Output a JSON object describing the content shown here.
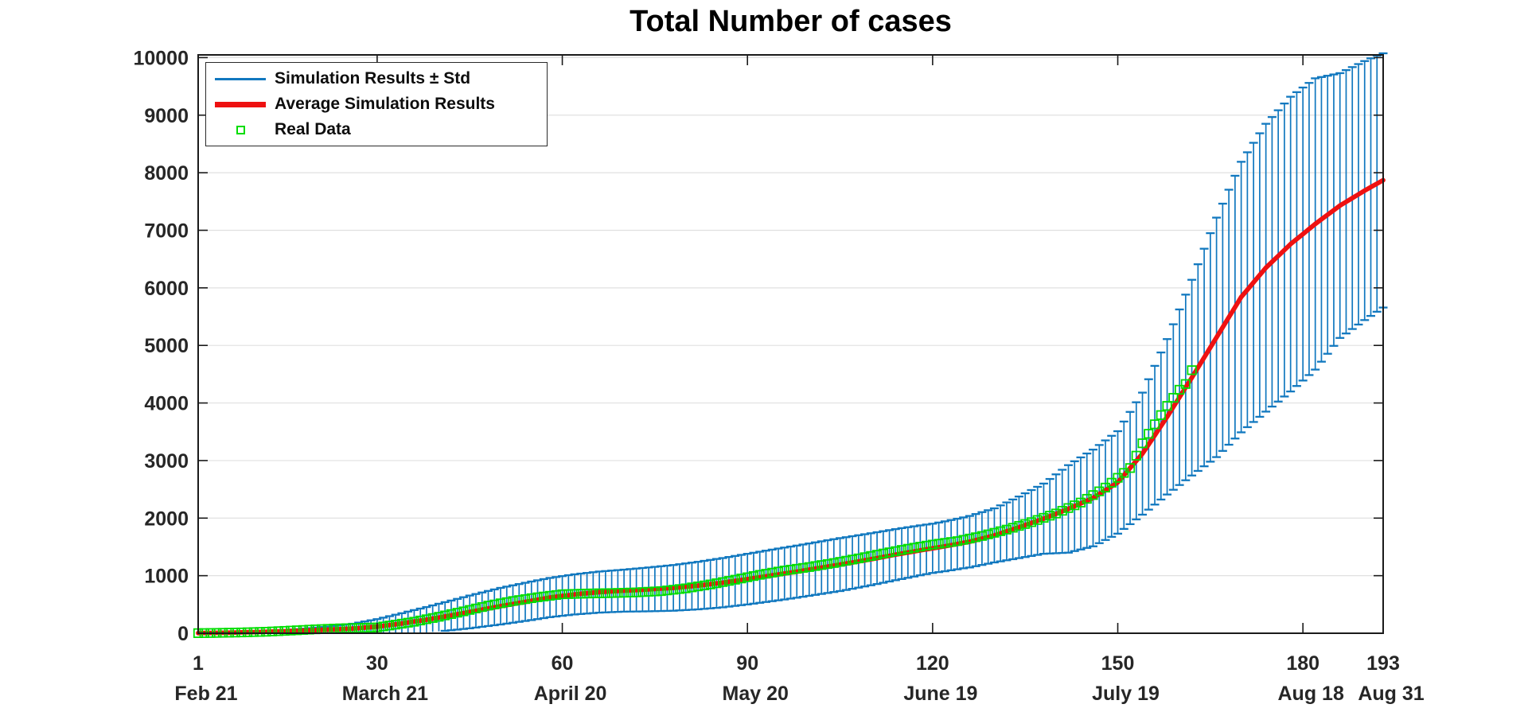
{
  "chart_data": {
    "type": "line+errorbar+scatter",
    "title": "Total Number of cases",
    "xlabel": "",
    "ylabel": "",
    "grid": "horizontal-only",
    "legend_position": "top-left",
    "x_axis": {
      "range": [
        1,
        193
      ],
      "ticks": [
        1,
        30,
        60,
        90,
        120,
        150,
        180,
        193
      ],
      "tick_labels": [
        "1",
        "30",
        "60",
        "90",
        "120",
        "150",
        "180",
        "193"
      ],
      "tick_dates": [
        "Feb 21",
        "March 21",
        "April 20",
        "May 20",
        "June 19",
        "July 19",
        "Aug 18",
        "Aug 31"
      ]
    },
    "y_axis": {
      "range": [
        0,
        10000
      ],
      "ticks": [
        0,
        1000,
        2000,
        3000,
        4000,
        5000,
        6000,
        7000,
        8000,
        9000,
        10000
      ]
    },
    "series": [
      {
        "name": "Simulation Results ± Std",
        "type": "errorbar",
        "color": "#1178bf",
        "x_days": [
          1,
          10,
          14,
          18,
          22,
          26,
          30,
          35,
          40,
          45,
          50,
          55,
          60,
          65,
          70,
          75,
          80,
          85,
          90,
          95,
          100,
          105,
          110,
          115,
          120,
          125,
          130,
          134,
          138,
          142,
          146,
          150,
          154,
          158,
          162,
          166,
          170,
          174,
          178,
          182,
          186,
          190,
          193
        ],
        "std": [
          3,
          10,
          18,
          35,
          55,
          85,
          130,
          190,
          240,
          285,
          318,
          335,
          345,
          355,
          365,
          385,
          405,
          425,
          440,
          450,
          455,
          460,
          452,
          442,
          428,
          442,
          470,
          535,
          610,
          760,
          840,
          890,
          1060,
          1350,
          1700,
          2080,
          2350,
          2500,
          2560,
          2530,
          2300,
          2250,
          2212
        ]
      },
      {
        "name": "Average Simulation Results",
        "type": "line",
        "color": "#ee1111",
        "x_days": [
          1,
          6,
          12,
          18,
          22,
          26,
          30,
          34,
          38,
          42,
          46,
          50,
          54,
          58,
          62,
          66,
          70,
          74,
          78,
          82,
          86,
          90,
          94,
          98,
          102,
          106,
          110,
          114,
          118,
          122,
          126,
          130,
          134,
          138,
          142,
          146,
          150,
          154,
          158,
          162,
          166,
          170,
          174,
          178,
          182,
          186,
          190,
          193
        ],
        "values": [
          3,
          10,
          25,
          45,
          62,
          80,
          115,
          170,
          235,
          310,
          390,
          470,
          545,
          620,
          675,
          715,
          740,
          762,
          788,
          828,
          878,
          940,
          1005,
          1070,
          1140,
          1210,
          1285,
          1365,
          1440,
          1510,
          1590,
          1700,
          1840,
          1990,
          2160,
          2350,
          2620,
          3120,
          3760,
          4440,
          5140,
          5840,
          6350,
          6760,
          7110,
          7430,
          7690,
          7870
        ]
      },
      {
        "name": "Real Data",
        "type": "scatter-square",
        "color": "#00dd00",
        "last_day": 162,
        "x_days": [
          1,
          4,
          8,
          12,
          16,
          20,
          24,
          28,
          30,
          33,
          36,
          40,
          44,
          48,
          52,
          56,
          60,
          64,
          68,
          72,
          76,
          80,
          84,
          88,
          92,
          96,
          100,
          104,
          108,
          112,
          116,
          120,
          124,
          128,
          132,
          136,
          140,
          144,
          148,
          152,
          154,
          156,
          158,
          160,
          161,
          162
        ],
        "values": [
          2,
          6,
          14,
          26,
          46,
          68,
          85,
          95,
          102,
          150,
          200,
          286,
          380,
          480,
          560,
          625,
          677,
          690,
          698,
          710,
          732,
          780,
          848,
          930,
          1015,
          1090,
          1150,
          1220,
          1300,
          1385,
          1468,
          1540,
          1600,
          1690,
          1800,
          1930,
          2080,
          2270,
          2530,
          2870,
          3300,
          3630,
          3950,
          4230,
          4330,
          4570
        ]
      }
    ],
    "colors": {
      "errorbar_blue": "#1178bf",
      "average_red": "#ee1111",
      "real_green": "#00dd00",
      "gridline": "#e0e0e0",
      "axis": "#1a1a1a",
      "tick_label": "#262626"
    }
  }
}
